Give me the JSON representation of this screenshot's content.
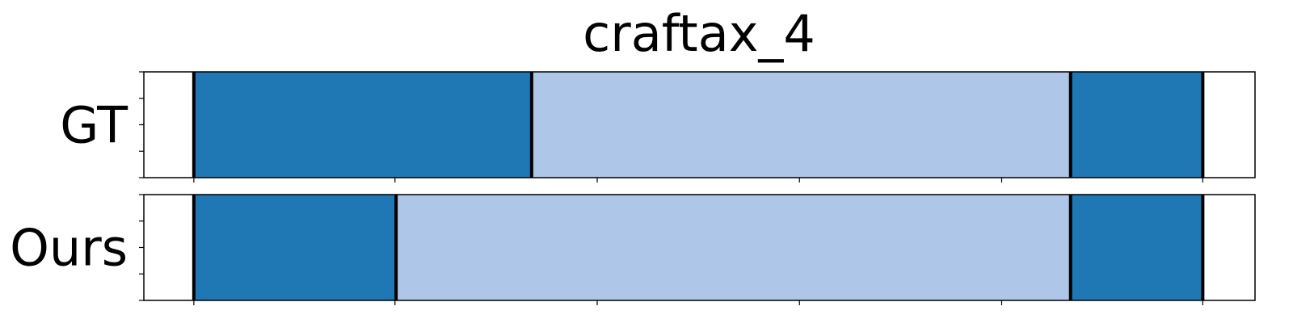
{
  "chart_data": {
    "type": "bar",
    "title": "craftax_4",
    "xlim": [
      0,
      1
    ],
    "xticks": [
      0.045,
      0.226,
      0.408,
      0.59,
      0.772,
      0.953
    ],
    "rows": [
      {
        "label": "GT",
        "segments": [
          {
            "start": 0.045,
            "end": 0.349,
            "color": "#1f77b4"
          },
          {
            "start": 0.349,
            "end": 0.834,
            "color": "#aec7e8"
          },
          {
            "start": 0.834,
            "end": 0.953,
            "color": "#1f77b4"
          }
        ]
      },
      {
        "label": "Ours",
        "segments": [
          {
            "start": 0.045,
            "end": 0.227,
            "color": "#1f77b4"
          },
          {
            "start": 0.227,
            "end": 0.834,
            "color": "#aec7e8"
          },
          {
            "start": 0.834,
            "end": 0.953,
            "color": "#1f77b4"
          }
        ]
      }
    ],
    "grid": false,
    "legend": "none"
  }
}
